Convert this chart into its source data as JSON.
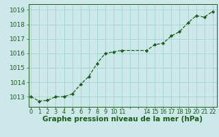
{
  "x": [
    0,
    1,
    2,
    3,
    4,
    5,
    6,
    7,
    8,
    9,
    10,
    11,
    14,
    15,
    16,
    17,
    18,
    19,
    20,
    21,
    22
  ],
  "y": [
    1013.0,
    1012.7,
    1012.75,
    1013.0,
    1013.0,
    1013.2,
    1013.85,
    1014.4,
    1015.3,
    1016.0,
    1016.1,
    1016.2,
    1016.2,
    1016.6,
    1016.7,
    1017.2,
    1017.5,
    1018.1,
    1018.6,
    1018.5,
    1018.9
  ],
  "line_color": "#1a5c1a",
  "marker_color": "#1a5c1a",
  "bg_color": "#cce8e8",
  "grid_color": "#99cccc",
  "xlabel": "Graphe pression niveau de la mer (hPa)",
  "xlabel_color": "#1a5c1a",
  "yticks": [
    1013,
    1014,
    1015,
    1016,
    1017,
    1018,
    1019
  ],
  "ylim": [
    1012.3,
    1019.4
  ],
  "xlim": [
    -0.3,
    22.5
  ],
  "tick_color": "#1a5c1a",
  "font_size": 6.5,
  "xlabel_fontsize": 7.5,
  "linewidth": 0.9,
  "markersize": 2.2
}
